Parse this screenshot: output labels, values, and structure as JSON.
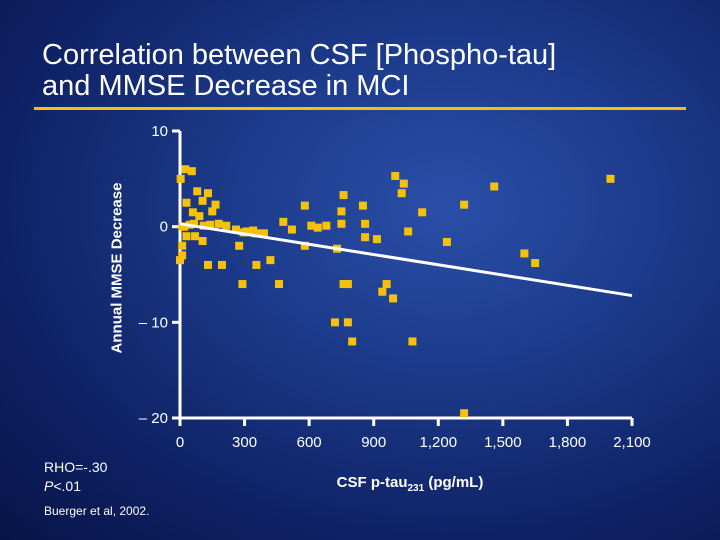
{
  "slide": {
    "title": "Correlation between CSF [Phospho-tau]\nand MMSE Decrease in MCI",
    "stats_rho": "RHO=-.30",
    "stats_p_label": "P",
    "stats_p_value": "<.01",
    "citation": "Buerger et al, 2002."
  },
  "colors": {
    "point": "#f6c10a",
    "axis": "#ffffff",
    "trend": "#ffffff",
    "accent": "#f6c10a"
  },
  "chart_data": {
    "type": "scatter",
    "title": "Correlation between CSF [Phospho-tau] and MMSE Decrease in MCI",
    "ylabel": "Annual  MMSE Decrease",
    "xlabel_main": "CSF p-tau",
    "xlabel_sub": "231",
    "xlabel_unit": " (pg/mL)",
    "xticks": [
      0,
      300,
      600,
      900,
      1200,
      1500,
      1800,
      2100
    ],
    "xtick_labels": [
      "0",
      "300",
      "600",
      "900",
      "1,200",
      "1,500",
      "1,800",
      "2,100"
    ],
    "yticks": [
      10,
      0,
      -10,
      -20
    ],
    "ytick_labels": [
      "10",
      "0",
      "– 10",
      "– 20"
    ],
    "xlim": [
      0,
      2100
    ],
    "ylim": [
      -20,
      10
    ],
    "points": [
      [
        3,
        5
      ],
      [
        25,
        6
      ],
      [
        55,
        5.8
      ],
      [
        30,
        2.5
      ],
      [
        80,
        3.7
      ],
      [
        105,
        2.7
      ],
      [
        130,
        3.5
      ],
      [
        10,
        0
      ],
      [
        60,
        1.5
      ],
      [
        90,
        1.1
      ],
      [
        150,
        1.6
      ],
      [
        165,
        2.3
      ],
      [
        215,
        0.1
      ],
      [
        20,
        0
      ],
      [
        45,
        0.2
      ],
      [
        65,
        0.3
      ],
      [
        110,
        0.1
      ],
      [
        140,
        0.2
      ],
      [
        180,
        0.3
      ],
      [
        30,
        -1
      ],
      [
        70,
        -1
      ],
      [
        105,
        -1.5
      ],
      [
        260,
        -0.3
      ],
      [
        295,
        -0.6
      ],
      [
        310,
        -0.5
      ],
      [
        340,
        -0.4
      ],
      [
        355,
        -0.7
      ],
      [
        390,
        -0.7
      ],
      [
        520,
        -0.3
      ],
      [
        610,
        0.1
      ],
      [
        640,
        -0.1
      ],
      [
        680,
        0.1
      ],
      [
        750,
        0.3
      ],
      [
        860,
        -1.1
      ],
      [
        915,
        -1.3
      ],
      [
        1060,
        -0.5
      ],
      [
        10,
        -2
      ],
      [
        0,
        -3.5
      ],
      [
        130,
        -4
      ],
      [
        195,
        -4
      ],
      [
        275,
        -2
      ],
      [
        355,
        -4
      ],
      [
        420,
        -3.5
      ],
      [
        580,
        -2
      ],
      [
        730,
        -2.3
      ],
      [
        1240,
        -1.6
      ],
      [
        1600,
        -2.8
      ],
      [
        1650,
        -3.8
      ],
      [
        10,
        -3
      ],
      [
        290,
        -6
      ],
      [
        460,
        -6
      ],
      [
        760,
        -6
      ],
      [
        780,
        -6
      ],
      [
        960,
        -6
      ],
      [
        940,
        -6.8
      ],
      [
        990,
        -7.5
      ],
      [
        1000,
        5.3
      ],
      [
        1030,
        3.5
      ],
      [
        1040,
        4.5
      ],
      [
        1125,
        1.5
      ],
      [
        1320,
        2.3
      ],
      [
        1460,
        4.2
      ],
      [
        2000,
        5
      ],
      [
        850,
        2.2
      ],
      [
        750,
        1.6
      ],
      [
        760,
        3.3
      ],
      [
        720,
        -10
      ],
      [
        780,
        -10
      ],
      [
        800,
        -12
      ],
      [
        1080,
        -12
      ],
      [
        1320,
        -19.5
      ],
      [
        580,
        2.2
      ],
      [
        480,
        0.5
      ],
      [
        860,
        0.3
      ]
    ],
    "trend_line": {
      "x": [
        0,
        2100
      ],
      "y": [
        0.3,
        -7.2
      ]
    },
    "grid": false,
    "legend": "none"
  }
}
